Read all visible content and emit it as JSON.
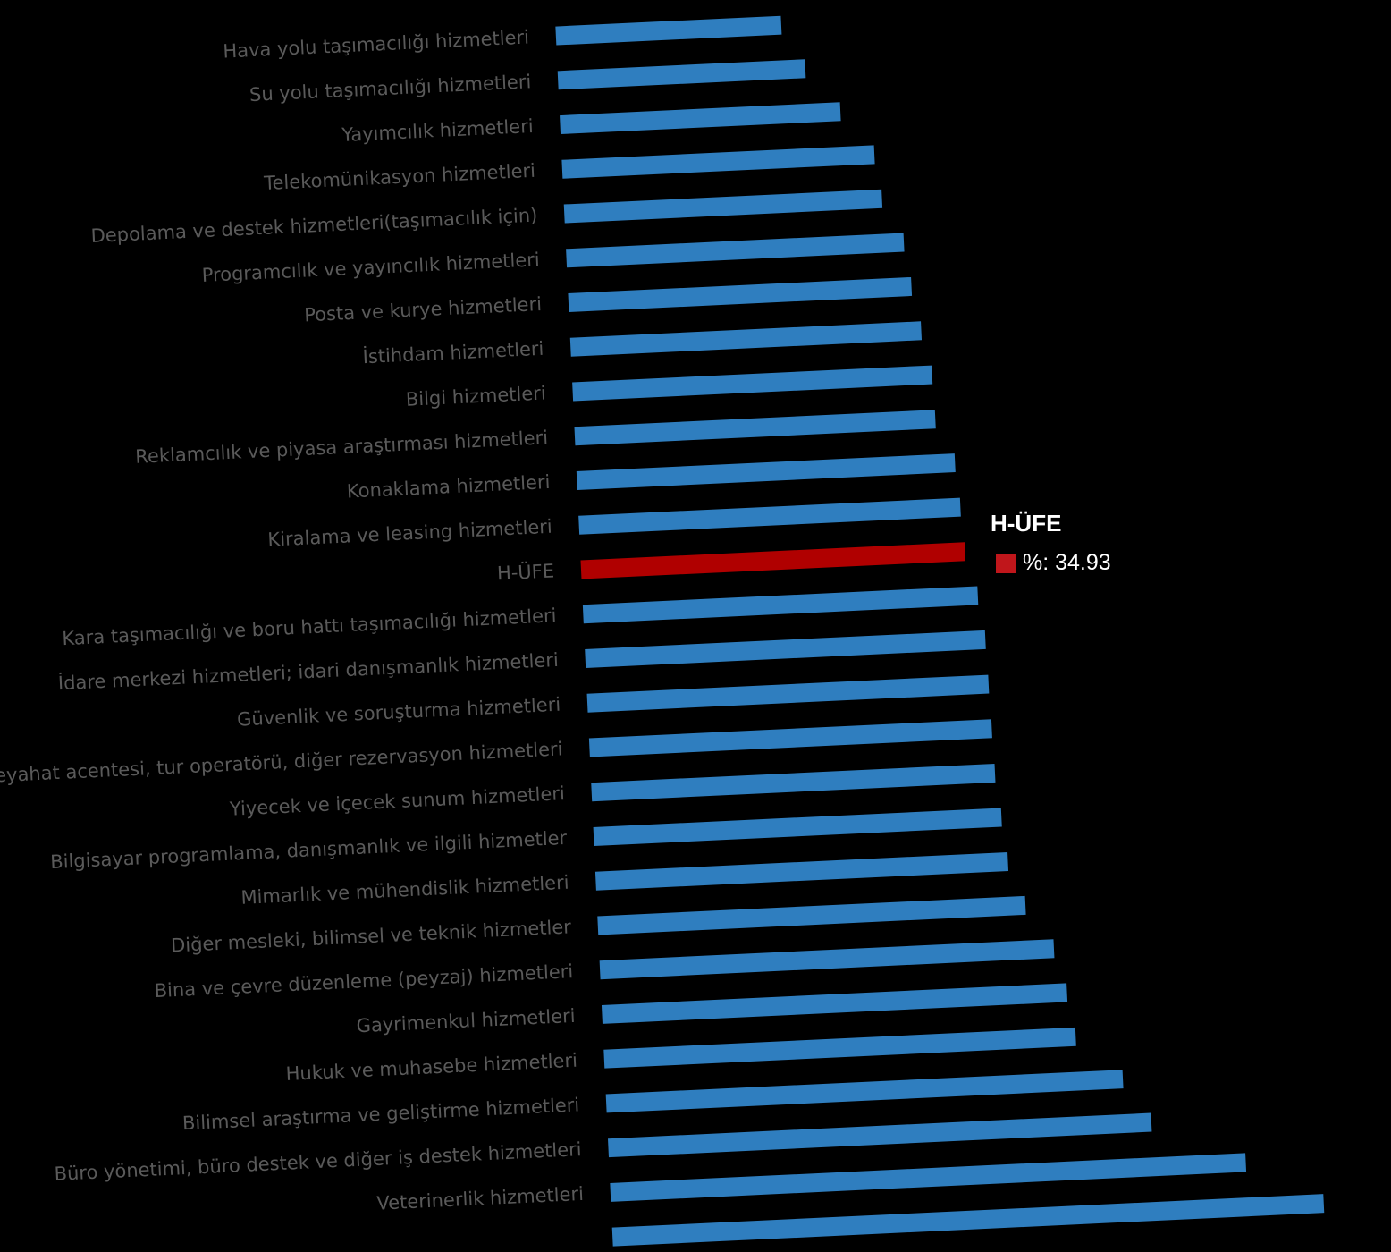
{
  "chart_data": {
    "type": "bar",
    "orientation": "horizontal",
    "categories": [
      "Hava yolu taşımacılığı hizmetleri",
      "Su yolu taşımacılığı hizmetleri",
      "Yayımcılık hizmetleri",
      "Telekomünikasyon hizmetleri",
      "Depolama ve destek hizmetleri(taşımacılık için)",
      "Programcılık ve yayıncılık hizmetleri",
      "Posta ve kurye hizmetleri",
      "İstihdam hizmetleri",
      "Bilgi hizmetleri",
      "Reklamcılık ve piyasa araştırması hizmetleri",
      "Konaklama hizmetleri",
      "Kiralama ve leasing hizmetleri",
      "H-ÜFE",
      "Kara taşımacılığı ve boru hattı taşımacılığı hizmetleri",
      "İdare merkezi hizmetleri; idari danışmanlık hizmetleri",
      "Güvenlik ve soruşturma hizmetleri",
      "Seyahat acentesi, tur operatörü, diğer rezervasyon hizmetleri",
      "Yiyecek ve içecek sunum hizmetleri",
      "Bilgisayar programlama, danışmanlık ve ilgili hizmetler",
      "Mimarlık ve mühendislik hizmetleri",
      "Diğer mesleki, bilimsel ve teknik hizmetler",
      "Bina ve çevre düzenleme (peyzaj) hizmetleri",
      "Gayrimenkul hizmetleri",
      "Hukuk ve muhasebe hizmetleri",
      "Bilimsel araştırma ve geliştirme hizmetleri",
      "Büro yönetimi, büro destek ve diğer iş destek hizmetleri",
      "Veterinerlik hizmetleri",
      ""
    ],
    "values": [
      20.5,
      22.5,
      25.5,
      28.4,
      28.9,
      30.7,
      31.2,
      31.9,
      32.7,
      32.8,
      34.4,
      34.7,
      34.93,
      35.9,
      36.4,
      36.5,
      36.6,
      36.7,
      37.1,
      37.5,
      38.9,
      41.3,
      42.3,
      42.9,
      47.0,
      49.4,
      57.8,
      64.7
    ],
    "highlight_index": 12,
    "colors": {
      "default": "#2f7ebf",
      "highlight": "#b00000"
    },
    "xlabel": "",
    "ylabel": "%",
    "grid": false
  },
  "tooltip": {
    "title": "H-ÜFE",
    "label": "%: 34.93",
    "swatch_color": "#c0161b"
  }
}
